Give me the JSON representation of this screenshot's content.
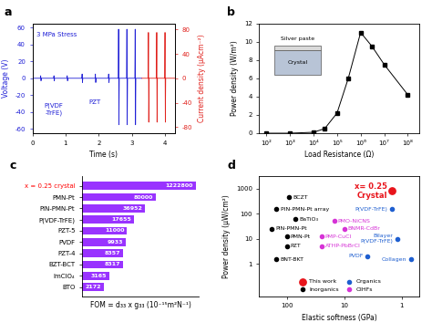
{
  "chart_data": [
    {
      "type": "line",
      "title": "a",
      "xlabel": "Time (s)",
      "ylabel": "Voltage (V)",
      "y2label": "Current density (μAcm⁻²)",
      "annotations": [
        "3 MPa Stress",
        "P(VDF\n-TrFE)",
        "PZT"
      ],
      "xlim": [
        0,
        4.3
      ],
      "xticks": [
        0,
        1,
        2,
        3,
        4
      ],
      "ylim": [
        -65,
        65
      ],
      "yticks": [
        -60,
        -40,
        -20,
        0,
        20,
        40,
        60
      ],
      "y2lim": [
        -90,
        90
      ],
      "y2ticks": [
        -80,
        -40,
        0,
        40,
        80
      ],
      "series": [
        {
          "color": "#1f1fd6",
          "x": [
            0,
            0.24,
            0.25,
            0.26,
            0.27,
            0.64,
            0.65,
            0.66,
            0.67,
            1.04,
            1.05,
            1.06,
            1.07,
            1.49,
            1.5,
            1.51,
            1.52,
            1.89,
            1.9,
            1.91,
            1.92,
            2.29,
            2.3,
            2.31,
            2.32,
            2.59,
            2.6,
            2.61,
            2.62,
            2.84,
            2.85,
            2.86,
            2.87,
            3.09,
            3.1,
            3.11,
            3.12,
            3.3
          ],
          "values": [
            0,
            0,
            3,
            -3,
            0,
            0,
            3,
            -3,
            0,
            0,
            3,
            -3,
            0,
            0,
            5,
            -5,
            0,
            0,
            5,
            -5,
            0,
            0,
            5,
            -5,
            0,
            0,
            58,
            -55,
            0,
            0,
            58,
            -55,
            0,
            0,
            58,
            -55,
            0,
            0
          ]
        },
        {
          "color": "#e0201b",
          "axis": "y2",
          "x": [
            3.3,
            3.49,
            3.5,
            3.51,
            3.52,
            3.74,
            3.75,
            3.76,
            3.77,
            3.99,
            4.0,
            4.01,
            4.02,
            4.3
          ],
          "values": [
            0,
            0,
            75,
            -72,
            0,
            0,
            75,
            -72,
            0,
            0,
            75,
            -72,
            0,
            0
          ]
        }
      ]
    },
    {
      "type": "line",
      "title": "b",
      "xlabel": "Load Resistance (Ω)",
      "ylabel": "Power density (W/m²)",
      "inset_labels": [
        "Silver paste",
        "Crystal"
      ],
      "log": "x",
      "color": "#000000",
      "marker": "square",
      "x": [
        100,
        1000,
        10000,
        30000,
        100000,
        300000,
        1000000,
        3000000,
        10000000,
        100000000
      ],
      "values": [
        0,
        0,
        0.1,
        0.5,
        2.2,
        6,
        11,
        9.5,
        7.5,
        4.2
      ],
      "xlim": [
        50,
        300000000
      ],
      "xticks": [
        {
          "value": 100,
          "label": "10²"
        },
        {
          "value": 1000,
          "label": "10³"
        },
        {
          "value": 10000,
          "label": "10⁴"
        },
        {
          "value": 100000,
          "label": "10⁵"
        },
        {
          "value": 1000000,
          "label": "10⁶"
        },
        {
          "value": 10000000,
          "label": "10⁷"
        },
        {
          "value": 100000000,
          "label": "10⁸"
        }
      ],
      "ylim": [
        0,
        12
      ],
      "yticks": [
        0,
        2,
        4,
        6,
        8,
        10,
        12
      ]
    },
    {
      "type": "bar",
      "orientation": "horizontal",
      "title": "c",
      "xlabel": "FOM = d₃₃ x g₃₃ (10⁻¹⁵m²N⁻¹)",
      "log": "x",
      "categories": [
        "x = 0.25 crystal",
        "PMN-Pt",
        "PIN-PMN-Pt",
        "P(VDF-TrFE)",
        "PZT-5",
        "PVDF",
        "PZT-4",
        "BZT-BCT",
        "ImClO₄",
        "BTO"
      ],
      "values": [
        1222800,
        80000,
        36952,
        17655,
        11000,
        9933,
        8357,
        8317,
        3165,
        2172
      ],
      "color": "#9933ff",
      "data_labels": true,
      "tick_labels": "y",
      "xlim": [
        500,
        1500000
      ]
    },
    {
      "type": "scatter",
      "title": "d",
      "xlabel": "Elastic softness (GPa)",
      "ylabel": "Power density (μW/cm²)",
      "log": true,
      "xlim": [
        300,
        0.5
      ],
      "xticks": [
        100,
        10,
        1
      ],
      "ylim": [
        0.05,
        3000
      ],
      "yticks": [
        1,
        10,
        100,
        1000
      ],
      "legend": "lower center",
      "series": [
        {
          "name": "This work",
          "color": "#e8141b",
          "x": [
            1.5
          ],
          "values": [
            800
          ],
          "labels": [
            "x= 0.25\nCrystal"
          ]
        },
        {
          "name": "Inorganics",
          "color": "#000000",
          "x": [
            90,
            150,
            70,
            180,
            100,
            100,
            150
          ],
          "values": [
            450,
            150,
            60,
            25,
            12,
            5,
            1.5
          ],
          "labels": [
            "BCZT",
            "PIN-PMN-Pt array",
            "BaTiO₃",
            "PIN-PMN-Pt",
            "PMN-Pt",
            "PZT",
            "BNT-BKT"
          ]
        },
        {
          "name": "Organics",
          "color": "#1f5fd0",
          "x": [
            4,
            1.5,
            1.2,
            0.7
          ],
          "values": [
            2,
            150,
            10,
            1.5
          ],
          "labels": [
            "PVDF",
            "P(VDF-TrFE)",
            "Bilayer\nP(VDF-TrFE)",
            "Collagen"
          ]
        },
        {
          "name": "OIHFs",
          "color": "#d633d6",
          "x": [
            15,
            10,
            25,
            25
          ],
          "values": [
            50,
            25,
            12,
            5
          ],
          "labels": [
            "PMO-NiCNS",
            "BNMR-CdBr",
            "PMP-CuCl",
            "ATHP-PbBrCl"
          ]
        }
      ]
    }
  ]
}
